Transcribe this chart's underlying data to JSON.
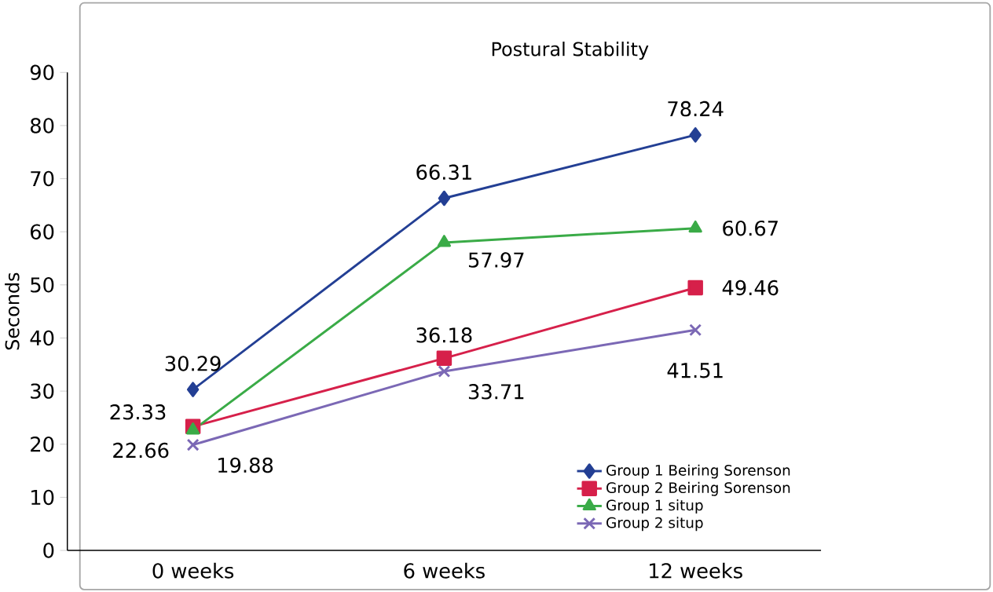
{
  "chart_data": {
    "type": "line",
    "title": "Postural Stability",
    "ylabel": "Seconds",
    "categories": [
      "0 weeks",
      "6 weeks",
      "12 weeks"
    ],
    "series": [
      {
        "name": "Group 1 Beiring Sorenson",
        "color": "#233f94",
        "marker": "diamond",
        "values": [
          30.29,
          66.31,
          78.24
        ]
      },
      {
        "name": "Group 2 Beiring Sorenson",
        "color": "#d6204a",
        "marker": "square",
        "values": [
          23.33,
          36.18,
          49.46
        ]
      },
      {
        "name": "Group 1 situp",
        "color": "#3aab47",
        "marker": "triangle",
        "values": [
          22.66,
          57.97,
          60.67
        ]
      },
      {
        "name": "Group 2 situp",
        "color": "#7b68b5",
        "marker": "cross",
        "values": [
          19.88,
          33.71,
          41.51
        ]
      }
    ],
    "ylim": [
      0,
      90
    ],
    "yticks": [
      0,
      10,
      20,
      30,
      40,
      50,
      60,
      70,
      80,
      90
    ],
    "data_labels": true,
    "legend": "bottom right",
    "grid": false
  }
}
